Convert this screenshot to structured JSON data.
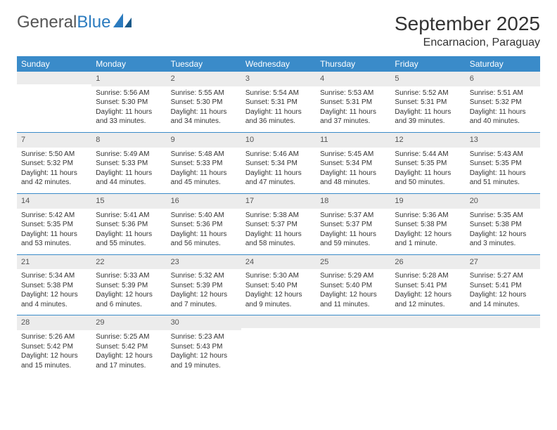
{
  "logo": {
    "text1": "General",
    "text2": "Blue"
  },
  "header": {
    "month": "September 2025",
    "location": "Encarnacion, Paraguay"
  },
  "dayNames": [
    "Sunday",
    "Monday",
    "Tuesday",
    "Wednesday",
    "Thursday",
    "Friday",
    "Saturday"
  ],
  "colors": {
    "headerBg": "#3a8bc9",
    "headerText": "#ffffff",
    "dayNumBg": "#ececec",
    "rowBorder": "#3a8bc9",
    "logoBlue": "#2b7bbf",
    "text": "#333333",
    "background": "#ffffff"
  },
  "typography": {
    "monthTitleSize": 28,
    "locationSize": 16,
    "dayHeaderSize": 12,
    "dayNumSize": 11,
    "bodySize": 10,
    "logoSize": 24
  },
  "layout": {
    "columns": 7,
    "rows": 5,
    "startDayIndex": 1
  },
  "days": [
    {
      "n": "1",
      "sr": "Sunrise: 5:56 AM",
      "ss": "Sunset: 5:30 PM",
      "d1": "Daylight: 11 hours",
      "d2": "and 33 minutes."
    },
    {
      "n": "2",
      "sr": "Sunrise: 5:55 AM",
      "ss": "Sunset: 5:30 PM",
      "d1": "Daylight: 11 hours",
      "d2": "and 34 minutes."
    },
    {
      "n": "3",
      "sr": "Sunrise: 5:54 AM",
      "ss": "Sunset: 5:31 PM",
      "d1": "Daylight: 11 hours",
      "d2": "and 36 minutes."
    },
    {
      "n": "4",
      "sr": "Sunrise: 5:53 AM",
      "ss": "Sunset: 5:31 PM",
      "d1": "Daylight: 11 hours",
      "d2": "and 37 minutes."
    },
    {
      "n": "5",
      "sr": "Sunrise: 5:52 AM",
      "ss": "Sunset: 5:31 PM",
      "d1": "Daylight: 11 hours",
      "d2": "and 39 minutes."
    },
    {
      "n": "6",
      "sr": "Sunrise: 5:51 AM",
      "ss": "Sunset: 5:32 PM",
      "d1": "Daylight: 11 hours",
      "d2": "and 40 minutes."
    },
    {
      "n": "7",
      "sr": "Sunrise: 5:50 AM",
      "ss": "Sunset: 5:32 PM",
      "d1": "Daylight: 11 hours",
      "d2": "and 42 minutes."
    },
    {
      "n": "8",
      "sr": "Sunrise: 5:49 AM",
      "ss": "Sunset: 5:33 PM",
      "d1": "Daylight: 11 hours",
      "d2": "and 44 minutes."
    },
    {
      "n": "9",
      "sr": "Sunrise: 5:48 AM",
      "ss": "Sunset: 5:33 PM",
      "d1": "Daylight: 11 hours",
      "d2": "and 45 minutes."
    },
    {
      "n": "10",
      "sr": "Sunrise: 5:46 AM",
      "ss": "Sunset: 5:34 PM",
      "d1": "Daylight: 11 hours",
      "d2": "and 47 minutes."
    },
    {
      "n": "11",
      "sr": "Sunrise: 5:45 AM",
      "ss": "Sunset: 5:34 PM",
      "d1": "Daylight: 11 hours",
      "d2": "and 48 minutes."
    },
    {
      "n": "12",
      "sr": "Sunrise: 5:44 AM",
      "ss": "Sunset: 5:35 PM",
      "d1": "Daylight: 11 hours",
      "d2": "and 50 minutes."
    },
    {
      "n": "13",
      "sr": "Sunrise: 5:43 AM",
      "ss": "Sunset: 5:35 PM",
      "d1": "Daylight: 11 hours",
      "d2": "and 51 minutes."
    },
    {
      "n": "14",
      "sr": "Sunrise: 5:42 AM",
      "ss": "Sunset: 5:35 PM",
      "d1": "Daylight: 11 hours",
      "d2": "and 53 minutes."
    },
    {
      "n": "15",
      "sr": "Sunrise: 5:41 AM",
      "ss": "Sunset: 5:36 PM",
      "d1": "Daylight: 11 hours",
      "d2": "and 55 minutes."
    },
    {
      "n": "16",
      "sr": "Sunrise: 5:40 AM",
      "ss": "Sunset: 5:36 PM",
      "d1": "Daylight: 11 hours",
      "d2": "and 56 minutes."
    },
    {
      "n": "17",
      "sr": "Sunrise: 5:38 AM",
      "ss": "Sunset: 5:37 PM",
      "d1": "Daylight: 11 hours",
      "d2": "and 58 minutes."
    },
    {
      "n": "18",
      "sr": "Sunrise: 5:37 AM",
      "ss": "Sunset: 5:37 PM",
      "d1": "Daylight: 11 hours",
      "d2": "and 59 minutes."
    },
    {
      "n": "19",
      "sr": "Sunrise: 5:36 AM",
      "ss": "Sunset: 5:38 PM",
      "d1": "Daylight: 12 hours",
      "d2": "and 1 minute."
    },
    {
      "n": "20",
      "sr": "Sunrise: 5:35 AM",
      "ss": "Sunset: 5:38 PM",
      "d1": "Daylight: 12 hours",
      "d2": "and 3 minutes."
    },
    {
      "n": "21",
      "sr": "Sunrise: 5:34 AM",
      "ss": "Sunset: 5:38 PM",
      "d1": "Daylight: 12 hours",
      "d2": "and 4 minutes."
    },
    {
      "n": "22",
      "sr": "Sunrise: 5:33 AM",
      "ss": "Sunset: 5:39 PM",
      "d1": "Daylight: 12 hours",
      "d2": "and 6 minutes."
    },
    {
      "n": "23",
      "sr": "Sunrise: 5:32 AM",
      "ss": "Sunset: 5:39 PM",
      "d1": "Daylight: 12 hours",
      "d2": "and 7 minutes."
    },
    {
      "n": "24",
      "sr": "Sunrise: 5:30 AM",
      "ss": "Sunset: 5:40 PM",
      "d1": "Daylight: 12 hours",
      "d2": "and 9 minutes."
    },
    {
      "n": "25",
      "sr": "Sunrise: 5:29 AM",
      "ss": "Sunset: 5:40 PM",
      "d1": "Daylight: 12 hours",
      "d2": "and 11 minutes."
    },
    {
      "n": "26",
      "sr": "Sunrise: 5:28 AM",
      "ss": "Sunset: 5:41 PM",
      "d1": "Daylight: 12 hours",
      "d2": "and 12 minutes."
    },
    {
      "n": "27",
      "sr": "Sunrise: 5:27 AM",
      "ss": "Sunset: 5:41 PM",
      "d1": "Daylight: 12 hours",
      "d2": "and 14 minutes."
    },
    {
      "n": "28",
      "sr": "Sunrise: 5:26 AM",
      "ss": "Sunset: 5:42 PM",
      "d1": "Daylight: 12 hours",
      "d2": "and 15 minutes."
    },
    {
      "n": "29",
      "sr": "Sunrise: 5:25 AM",
      "ss": "Sunset: 5:42 PM",
      "d1": "Daylight: 12 hours",
      "d2": "and 17 minutes."
    },
    {
      "n": "30",
      "sr": "Sunrise: 5:23 AM",
      "ss": "Sunset: 5:43 PM",
      "d1": "Daylight: 12 hours",
      "d2": "and 19 minutes."
    }
  ]
}
